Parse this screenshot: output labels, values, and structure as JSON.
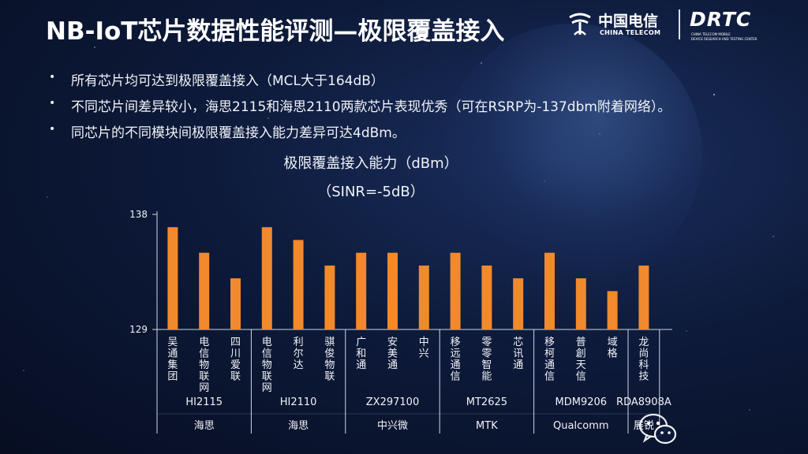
{
  "header": {
    "title": "NB-IoT芯片数据性能评测—极限覆盖接入",
    "logo_ct_cn": "中国电信",
    "logo_ct_en": "CHINA TELECOM",
    "logo_drtc": "DRTC",
    "logo_drtc_line1": "CHINA TELECOM MOBILE",
    "logo_drtc_line2": "DEVICE RESEARCH AND TESTING CENTER"
  },
  "bullets": [
    "所有芯片均可达到极限覆盖接入（MCL大于164dB）",
    "不同芯片间差异较小，海思2115和海思2110两款芯片表现优秀（可在RSRP为-137dbm附着网络）。",
    "同芯片的不同模块间极限覆盖接入能力差异可达4dBm。"
  ],
  "bullet_symbol": "•",
  "colors": {
    "bar": "#f08a2c",
    "axis": "#cfd6e6",
    "text": "#f1f3f8"
  },
  "chart_data": {
    "type": "bar",
    "title": "极限覆盖接入能力（dBm）",
    "subtitle": "（SINR=-5dB）",
    "ylim": [
      129,
      138
    ],
    "yticks": [
      "138",
      "129"
    ],
    "grid": false,
    "categories": [
      "吴通集团",
      "电信物联网",
      "四川爱联",
      "电信物联网",
      "利尔达",
      "骐俊物联",
      "广和通",
      "安美通",
      "中兴",
      "移远通信",
      "零零智能",
      "芯讯通",
      "移柯通信",
      "普創天信",
      "域格",
      "龙尚科技"
    ],
    "values": [
      137,
      135,
      133,
      137,
      136,
      134,
      135,
      135,
      134,
      135,
      134,
      133,
      135,
      133,
      132,
      134
    ],
    "chip_groups": [
      {
        "chip": "HI2115",
        "vendor": "海思",
        "count": 3
      },
      {
        "chip": "HI2110",
        "vendor": "海思",
        "count": 3
      },
      {
        "chip": "ZX297100",
        "vendor": "中兴微",
        "count": 3
      },
      {
        "chip": "MT2625",
        "vendor": "MTK",
        "count": 3
      },
      {
        "chip": "MDM9206",
        "vendor": "Qualcomm",
        "count": 3
      },
      {
        "chip": "RDA8908A",
        "vendor": "展锐",
        "count": 1
      }
    ]
  }
}
